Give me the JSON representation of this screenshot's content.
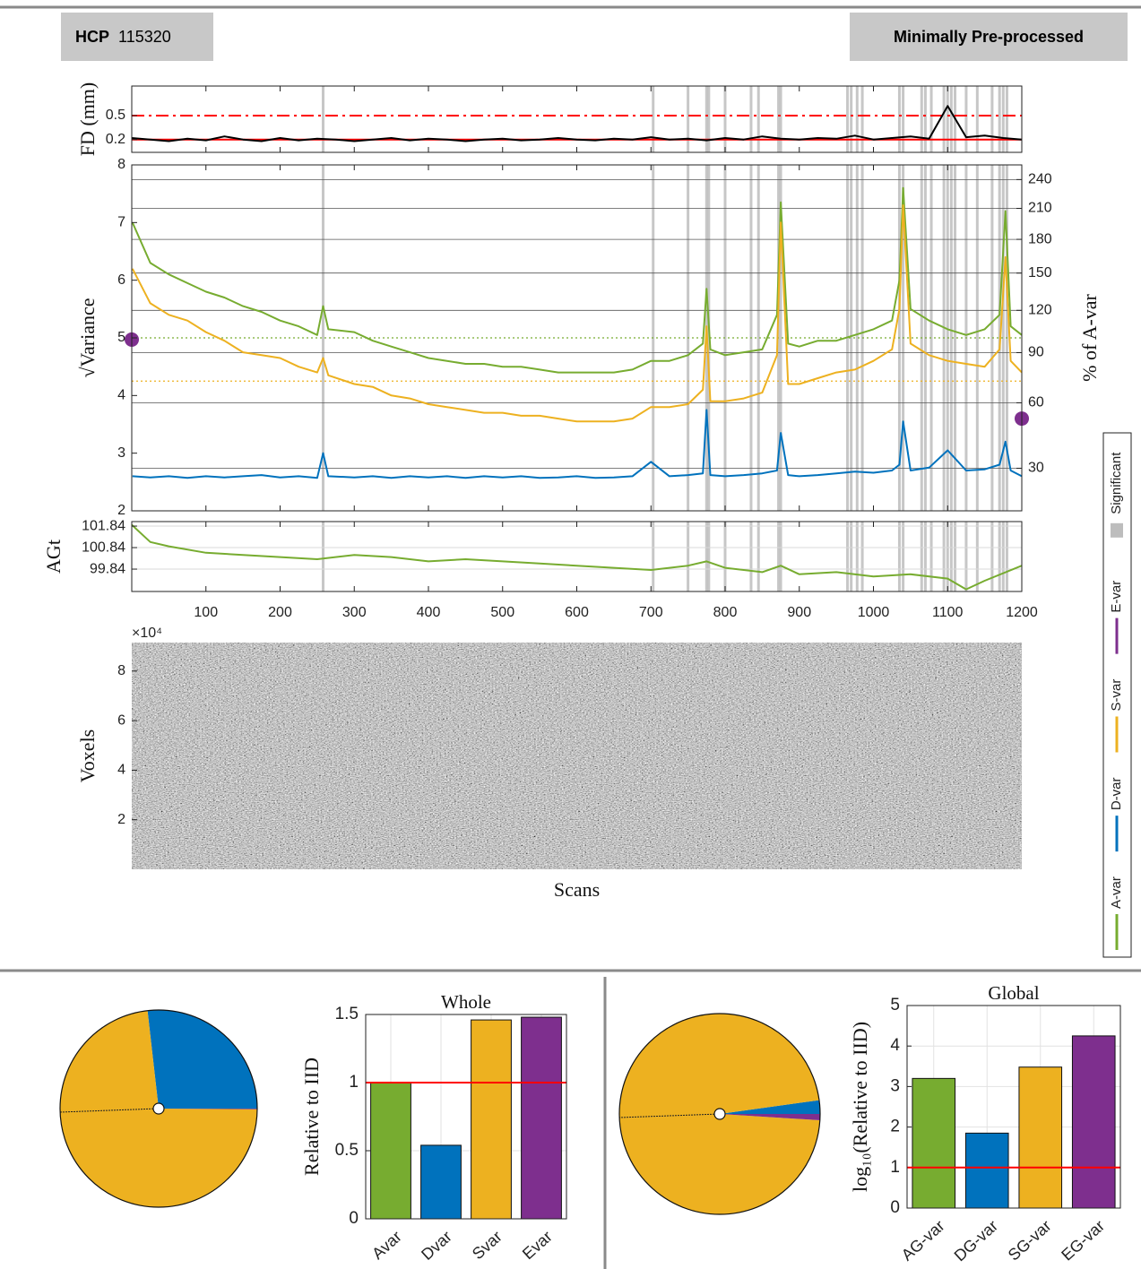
{
  "header": {
    "id_label": "HCP",
    "id": "115320",
    "pipeline": "Minimally Pre-processed"
  },
  "chart_data": [
    {
      "type": "line",
      "ylabel": "FD (mm)",
      "color": "#000000",
      "x": [
        0,
        25,
        50,
        75,
        100,
        125,
        150,
        175,
        200,
        225,
        250,
        275,
        300,
        325,
        350,
        375,
        400,
        425,
        450,
        475,
        500,
        525,
        550,
        575,
        600,
        625,
        650,
        675,
        700,
        725,
        750,
        775,
        800,
        825,
        850,
        875,
        900,
        925,
        950,
        975,
        1000,
        1025,
        1050,
        1075,
        1100,
        1125,
        1150,
        1175,
        1200
      ],
      "values": [
        0.22,
        0.2,
        0.18,
        0.21,
        0.19,
        0.24,
        0.2,
        0.18,
        0.22,
        0.19,
        0.21,
        0.2,
        0.18,
        0.2,
        0.22,
        0.19,
        0.21,
        0.2,
        0.18,
        0.2,
        0.21,
        0.19,
        0.2,
        0.22,
        0.2,
        0.19,
        0.21,
        0.2,
        0.23,
        0.2,
        0.21,
        0.19,
        0.22,
        0.2,
        0.24,
        0.21,
        0.2,
        0.22,
        0.21,
        0.25,
        0.2,
        0.22,
        0.24,
        0.21,
        0.62,
        0.23,
        0.25,
        0.22,
        0.2
      ],
      "xlim": [
        0,
        1200
      ],
      "xticks": [
        100,
        200,
        300,
        400,
        500,
        600,
        700,
        800,
        900,
        1000,
        1100,
        1200
      ],
      "ylim": [
        0.04,
        0.87
      ],
      "yticks": [
        0.2,
        0.5
      ],
      "ref_lines": [
        {
          "value": 0.5,
          "color": "#ff0000",
          "style": "dashdot"
        },
        {
          "value": 0.2,
          "color": "#ff0000",
          "style": "solid"
        }
      ]
    },
    {
      "type": "line",
      "ylabel": "√Variance",
      "y2label": "% of A-var",
      "x": [
        1,
        25,
        50,
        75,
        100,
        125,
        150,
        175,
        200,
        225,
        250,
        258,
        265,
        300,
        325,
        350,
        375,
        400,
        425,
        450,
        475,
        500,
        525,
        550,
        575,
        600,
        625,
        650,
        675,
        700,
        725,
        750,
        770,
        775,
        780,
        800,
        825,
        850,
        870,
        875,
        885,
        900,
        925,
        950,
        975,
        1000,
        1025,
        1035,
        1040,
        1050,
        1075,
        1100,
        1125,
        1150,
        1170,
        1178,
        1185,
        1200
      ],
      "series": [
        {
          "name": "A-var",
          "color": "#77ac30",
          "values": [
            7.0,
            6.3,
            6.1,
            5.95,
            5.8,
            5.7,
            5.55,
            5.45,
            5.3,
            5.2,
            5.05,
            5.55,
            5.15,
            5.1,
            4.95,
            4.85,
            4.75,
            4.65,
            4.6,
            4.55,
            4.55,
            4.5,
            4.5,
            4.45,
            4.4,
            4.4,
            4.4,
            4.4,
            4.45,
            4.6,
            4.6,
            4.7,
            4.9,
            5.85,
            4.8,
            4.7,
            4.75,
            4.8,
            5.4,
            7.35,
            4.9,
            4.85,
            4.95,
            4.95,
            5.05,
            5.15,
            5.3,
            6.0,
            7.6,
            5.5,
            5.3,
            5.15,
            5.05,
            5.15,
            5.4,
            7.2,
            5.2,
            5.05
          ]
        },
        {
          "name": "D-var",
          "color": "#0072bd",
          "values": [
            2.6,
            2.58,
            2.6,
            2.57,
            2.6,
            2.58,
            2.6,
            2.62,
            2.58,
            2.6,
            2.57,
            3.0,
            2.6,
            2.58,
            2.6,
            2.57,
            2.6,
            2.58,
            2.6,
            2.57,
            2.6,
            2.58,
            2.6,
            2.57,
            2.58,
            2.6,
            2.57,
            2.58,
            2.6,
            2.85,
            2.6,
            2.62,
            2.65,
            3.75,
            2.62,
            2.6,
            2.62,
            2.65,
            2.7,
            3.35,
            2.62,
            2.6,
            2.62,
            2.65,
            2.68,
            2.66,
            2.7,
            2.8,
            3.55,
            2.7,
            2.75,
            3.05,
            2.7,
            2.72,
            2.8,
            3.2,
            2.7,
            2.6
          ]
        },
        {
          "name": "S-var",
          "color": "#edb120",
          "values": [
            6.2,
            5.6,
            5.4,
            5.3,
            5.1,
            4.95,
            4.75,
            4.7,
            4.65,
            4.5,
            4.4,
            4.65,
            4.35,
            4.2,
            4.15,
            4.0,
            3.95,
            3.85,
            3.8,
            3.75,
            3.7,
            3.7,
            3.65,
            3.65,
            3.6,
            3.55,
            3.55,
            3.55,
            3.6,
            3.8,
            3.8,
            3.85,
            4.1,
            5.2,
            3.9,
            3.9,
            3.95,
            4.05,
            4.7,
            7.0,
            4.2,
            4.2,
            4.3,
            4.4,
            4.45,
            4.6,
            4.8,
            5.5,
            7.3,
            4.9,
            4.7,
            4.6,
            4.55,
            4.5,
            4.8,
            6.4,
            4.6,
            4.4
          ]
        }
      ],
      "markers": {
        "name": "E-var",
        "color": "#7e2f8e",
        "left": 4.97,
        "right": 3.6
      },
      "bands": {
        "name": "Significant",
        "color": "#bdbdbd",
        "x": [
          258,
          703,
          750,
          775,
          778,
          800,
          835,
          845,
          872,
          875,
          965,
          970,
          978,
          985,
          1035,
          1040,
          1065,
          1070,
          1078,
          1095,
          1100,
          1105,
          1110,
          1125,
          1140,
          1160,
          1170,
          1175,
          1180
        ]
      },
      "ref_lines": [
        {
          "value": 5.0,
          "color": "#77ac30",
          "style": "dotted"
        },
        {
          "value": 4.25,
          "color": "#edb120",
          "style": "dotted"
        }
      ],
      "xlim": [
        0,
        1200
      ],
      "xticks": [
        100,
        200,
        300,
        400,
        500,
        600,
        700,
        800,
        900,
        1000,
        1100,
        1200
      ],
      "ylim": [
        2,
        8
      ],
      "yticks": [
        2,
        3,
        4,
        5,
        6,
        7,
        8
      ],
      "y2lim": [
        16,
        256
      ],
      "y2ticks": [
        30,
        60,
        90,
        120,
        150,
        180,
        210,
        240
      ],
      "y2scale": "sqrt",
      "grid": "y2"
    },
    {
      "type": "line",
      "ylabel": "AGt",
      "color": "#77ac30",
      "show_xtick_labels": true,
      "x": [
        0,
        25,
        50,
        100,
        150,
        200,
        250,
        300,
        350,
        400,
        450,
        500,
        550,
        600,
        650,
        700,
        750,
        775,
        800,
        850,
        875,
        900,
        950,
        1000,
        1050,
        1100,
        1125,
        1150,
        1200
      ],
      "values": [
        101.9,
        101.1,
        100.9,
        100.6,
        100.5,
        100.4,
        100.3,
        100.5,
        100.4,
        100.2,
        100.3,
        100.2,
        100.1,
        100.0,
        99.9,
        99.8,
        100.0,
        100.2,
        99.9,
        99.7,
        100.0,
        99.6,
        99.7,
        99.5,
        99.6,
        99.4,
        98.9,
        99.3,
        100.0
      ],
      "xlim": [
        0,
        1200
      ],
      "xticks": [
        100,
        200,
        300,
        400,
        500,
        600,
        700,
        800,
        900,
        1000,
        1100,
        1200
      ],
      "ylim": [
        98.8,
        102.05
      ],
      "yticks": [
        99.84,
        100.84,
        101.84
      ],
      "grid": "y"
    },
    {
      "type": "image",
      "ylabel": "Voxels",
      "xlabel": "Scans",
      "multiplier": "×10⁴",
      "ylim": [
        0,
        9.15
      ],
      "yticks": [
        2,
        4,
        6,
        8
      ]
    },
    {
      "type": "pie",
      "values": [
        26.8,
        73.1,
        0.1
      ],
      "colors": [
        "#0072bd",
        "#edb120",
        "#7e2f8e"
      ],
      "startangle": 0,
      "counterclock": true
    },
    {
      "type": "bar",
      "title": "Whole",
      "ylabel": "Relative to IID",
      "categories": [
        "Avar",
        "Dvar",
        "Svar",
        "Evar"
      ],
      "values": [
        1.0,
        0.54,
        1.46,
        1.48
      ],
      "colors": [
        "#77ac30",
        "#0072bd",
        "#edb120",
        "#7e2f8e"
      ],
      "ylim": [
        0,
        1.5
      ],
      "yticks": [
        0,
        0.5,
        1,
        1.5
      ],
      "grid": true,
      "ref_lines": [
        {
          "value": 1,
          "color": "#ff0000",
          "style": "solid"
        }
      ]
    },
    {
      "type": "pie",
      "values": [
        2.2,
        96.8,
        1.0
      ],
      "colors": [
        "#0072bd",
        "#edb120",
        "#7e2f8e"
      ],
      "startangle": 0,
      "counterclock": true
    },
    {
      "type": "bar",
      "title": "Global",
      "ylabel": "log₁₀(Relative to IID)",
      "categories": [
        "AG-var",
        "DG-var",
        "SG-var",
        "EG-var"
      ],
      "values": [
        3.2,
        1.85,
        3.48,
        4.25
      ],
      "colors": [
        "#77ac30",
        "#0072bd",
        "#edb120",
        "#7e2f8e"
      ],
      "ylim": [
        0,
        5
      ],
      "yticks": [
        0,
        1,
        2,
        3,
        4,
        5
      ],
      "grid": true,
      "ref_lines": [
        {
          "value": 1,
          "color": "#ff0000",
          "style": "solid"
        }
      ]
    }
  ]
}
